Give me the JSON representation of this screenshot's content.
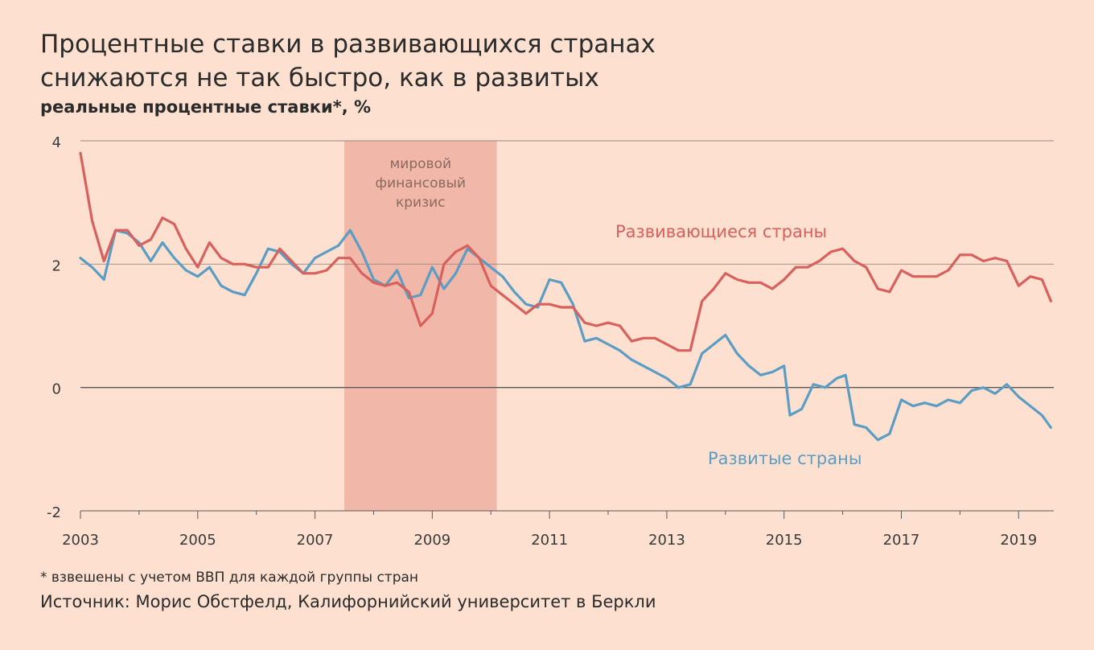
{
  "title_line1": "Процентные ставки в развивающихся странах",
  "title_line2": "снижаются не так быстро, как в развитых",
  "subtitle": "реальные процентные ставки*, %",
  "footnote": "* взвешены с учетом ВВП для каждой группы стран",
  "source": "Источник: Морис Обстфелд, Калифорнийский университет в Беркли",
  "colors": {
    "background": "#fde0cf",
    "emerging": "#d9605c",
    "advanced": "#5b9dc4",
    "crisis_band": "#f1b7a8",
    "grid": "#9a8a80"
  },
  "chart_data": {
    "type": "line",
    "xlim": [
      2003,
      2019.6
    ],
    "ylim": [
      -2,
      4
    ],
    "x_ticks": [
      "2003",
      "2005",
      "2007",
      "2009",
      "2011",
      "2013",
      "2015",
      "2017",
      "2019"
    ],
    "y_ticks": [
      "4",
      "2",
      "0",
      "-2"
    ],
    "shaded_region": {
      "x_start": 2007.5,
      "x_end": 2010.1,
      "label": [
        "мировой",
        "финансовый",
        "кризис"
      ]
    },
    "series": [
      {
        "name": "Развивающиеся страны",
        "x": [
          2003.0,
          2003.2,
          2003.4,
          2003.6,
          2003.8,
          2004.0,
          2004.2,
          2004.4,
          2004.6,
          2004.8,
          2005.0,
          2005.2,
          2005.4,
          2005.6,
          2005.8,
          2006.0,
          2006.2,
          2006.4,
          2006.6,
          2006.8,
          2007.0,
          2007.2,
          2007.4,
          2007.6,
          2007.8,
          2008.0,
          2008.2,
          2008.4,
          2008.6,
          2008.8,
          2009.0,
          2009.2,
          2009.4,
          2009.6,
          2009.8,
          2010.0,
          2010.2,
          2010.4,
          2010.6,
          2010.8,
          2011.0,
          2011.2,
          2011.4,
          2011.6,
          2011.8,
          2012.0,
          2012.2,
          2012.4,
          2012.6,
          2012.8,
          2013.0,
          2013.2,
          2013.4,
          2013.6,
          2013.8,
          2014.0,
          2014.2,
          2014.4,
          2014.6,
          2014.8,
          2015.0,
          2015.2,
          2015.4,
          2015.6,
          2015.8,
          2016.0,
          2016.2,
          2016.4,
          2016.6,
          2016.8,
          2017.0,
          2017.2,
          2017.4,
          2017.6,
          2017.8,
          2018.0,
          2018.2,
          2018.4,
          2018.6,
          2018.8,
          2019.0,
          2019.2,
          2019.4,
          2019.55
        ],
        "values": [
          3.8,
          2.7,
          2.05,
          2.55,
          2.55,
          2.3,
          2.4,
          2.75,
          2.65,
          2.25,
          1.95,
          2.35,
          2.1,
          2.0,
          2.0,
          1.95,
          1.95,
          2.25,
          2.05,
          1.85,
          1.85,
          1.9,
          2.1,
          2.1,
          1.85,
          1.7,
          1.65,
          1.7,
          1.55,
          1.0,
          1.2,
          2.0,
          2.2,
          2.3,
          2.1,
          1.65,
          1.5,
          1.35,
          1.2,
          1.35,
          1.35,
          1.3,
          1.3,
          1.05,
          1.0,
          1.05,
          1.0,
          0.75,
          0.8,
          0.8,
          0.7,
          0.6,
          0.6,
          1.4,
          1.6,
          1.85,
          1.75,
          1.7,
          1.7,
          1.6,
          1.75,
          1.95,
          1.95,
          2.05,
          2.2,
          2.25,
          2.05,
          1.95,
          1.6,
          1.55,
          1.9,
          1.8,
          1.8,
          1.8,
          1.9,
          2.15,
          2.15,
          2.05,
          2.1,
          2.05,
          1.65,
          1.8,
          1.75,
          1.4
        ]
      },
      {
        "name": "Развитые страны",
        "x": [
          2003.0,
          2003.2,
          2003.4,
          2003.6,
          2003.8,
          2004.0,
          2004.2,
          2004.4,
          2004.6,
          2004.8,
          2005.0,
          2005.2,
          2005.4,
          2005.6,
          2005.8,
          2006.0,
          2006.2,
          2006.4,
          2006.6,
          2006.8,
          2007.0,
          2007.2,
          2007.4,
          2007.6,
          2007.8,
          2008.0,
          2008.2,
          2008.4,
          2008.6,
          2008.8,
          2009.0,
          2009.2,
          2009.4,
          2009.6,
          2009.8,
          2010.0,
          2010.2,
          2010.4,
          2010.6,
          2010.8,
          2011.0,
          2011.2,
          2011.4,
          2011.6,
          2011.8,
          2012.0,
          2012.2,
          2012.4,
          2012.6,
          2012.8,
          2013.0,
          2013.2,
          2013.4,
          2013.6,
          2013.8,
          2014.0,
          2014.2,
          2014.4,
          2014.6,
          2014.8,
          2015.0,
          2015.1,
          2015.3,
          2015.5,
          2015.7,
          2015.9,
          2016.05,
          2016.2,
          2016.4,
          2016.6,
          2016.8,
          2017.0,
          2017.2,
          2017.4,
          2017.6,
          2017.8,
          2018.0,
          2018.2,
          2018.4,
          2018.6,
          2018.8,
          2019.0,
          2019.2,
          2019.4,
          2019.55
        ],
        "values": [
          2.1,
          1.95,
          1.75,
          2.55,
          2.5,
          2.35,
          2.05,
          2.35,
          2.1,
          1.9,
          1.8,
          1.95,
          1.65,
          1.55,
          1.5,
          1.85,
          2.25,
          2.2,
          2.0,
          1.85,
          2.1,
          2.2,
          2.3,
          2.55,
          2.2,
          1.75,
          1.65,
          1.9,
          1.45,
          1.5,
          1.95,
          1.6,
          1.85,
          2.25,
          2.1,
          1.95,
          1.8,
          1.55,
          1.35,
          1.3,
          1.75,
          1.7,
          1.35,
          0.75,
          0.8,
          0.7,
          0.6,
          0.45,
          0.35,
          0.25,
          0.15,
          0.0,
          0.05,
          0.55,
          0.7,
          0.85,
          0.55,
          0.35,
          0.2,
          0.25,
          0.35,
          -0.45,
          -0.35,
          0.05,
          0.0,
          0.15,
          0.2,
          -0.6,
          -0.65,
          -0.85,
          -0.75,
          -0.2,
          -0.3,
          -0.25,
          -0.3,
          -0.2,
          -0.25,
          -0.05,
          0.0,
          -0.1,
          0.05,
          -0.15,
          -0.3,
          -0.45,
          -0.65
        ]
      }
    ],
    "series_labels": {
      "emerging": "Развивающиеся страны",
      "advanced": "Развитые страны"
    }
  }
}
